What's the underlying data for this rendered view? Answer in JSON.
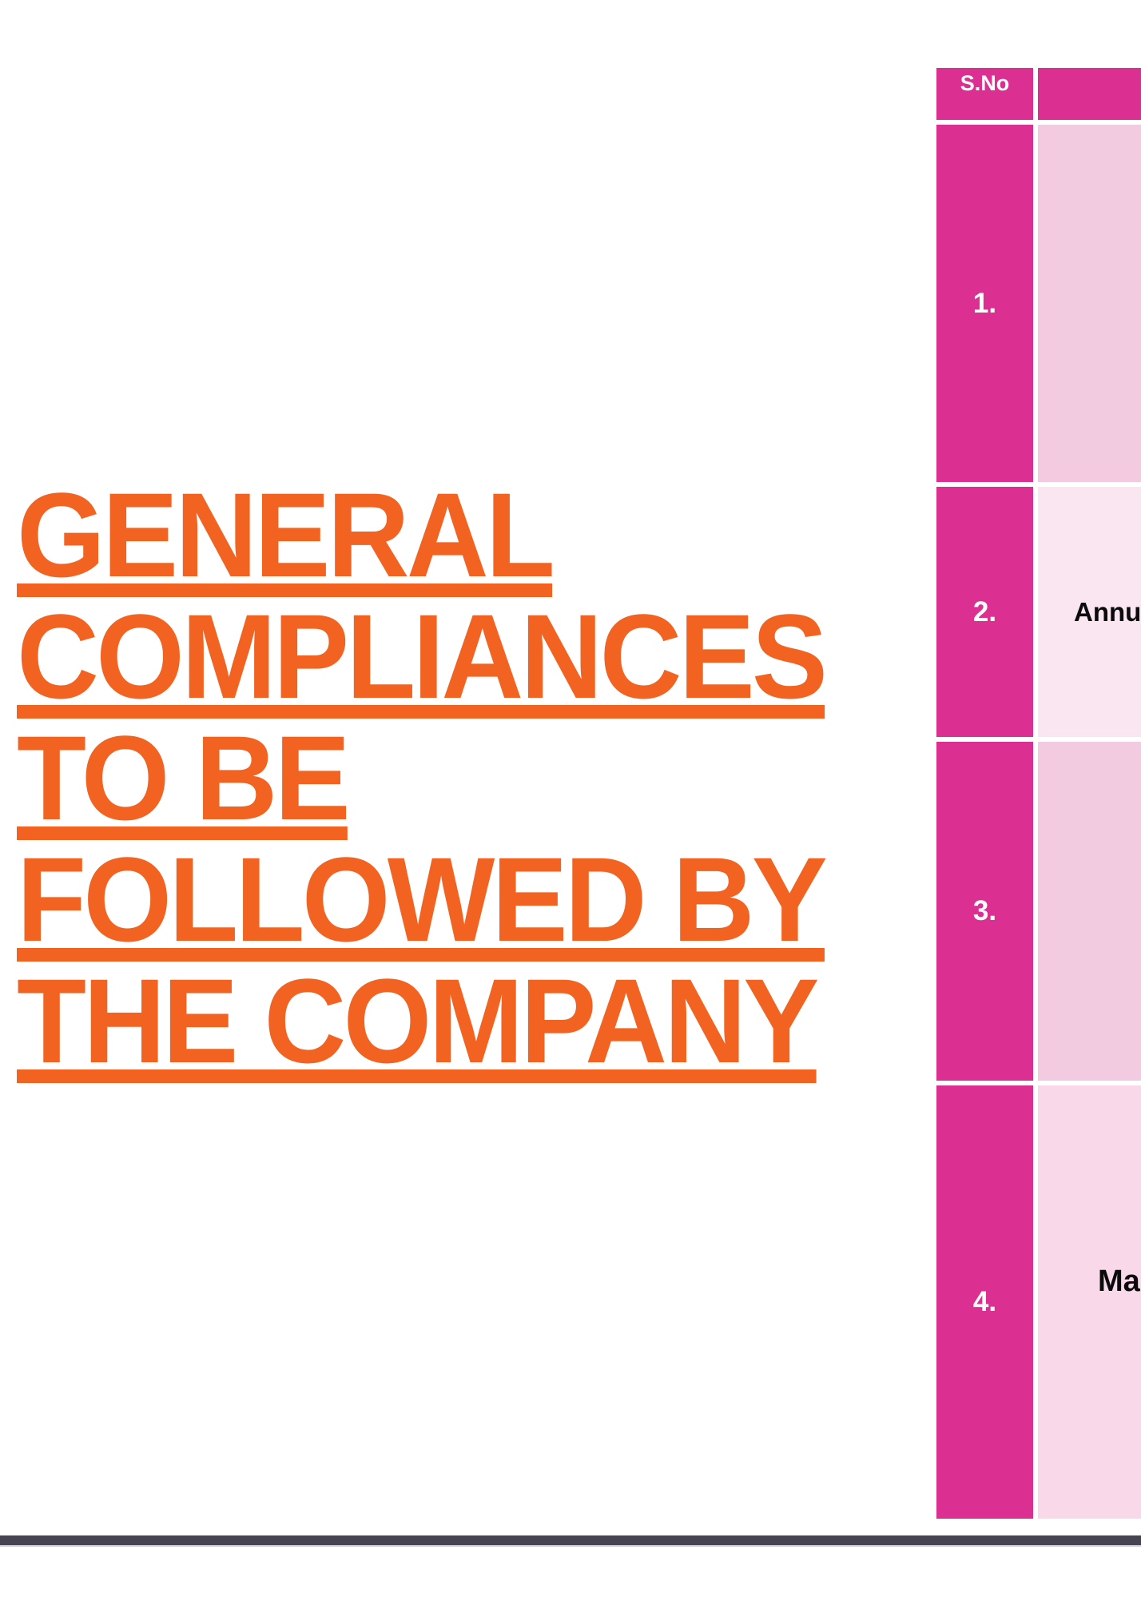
{
  "page": {
    "background_color": "#FFFFFF",
    "accent_orange": "#F26322",
    "accent_magenta": "#DB3092"
  },
  "title": {
    "full_text": "GENERAL COMPLIANCES TO BE FOLLOWED BY THE COMPANY",
    "lines": [
      "GENERAL",
      "COMPLIANCES",
      "TO BE",
      "FOLLOWED BY",
      "THE COMPANY"
    ],
    "color": "#F26322",
    "underlined": true
  },
  "table": {
    "header": {
      "sno_label": "S.No",
      "second_column_label": ""
    },
    "rows": [
      {
        "sno": "1.",
        "text": ""
      },
      {
        "sno": "2.",
        "text": "Annua"
      },
      {
        "sno": "3.",
        "text": ""
      },
      {
        "sno": "4.",
        "text": "Mai"
      }
    ],
    "colors": {
      "header_bg": "#DB3092",
      "sno_column_bg": "#DB3092",
      "row_odd_bg": "#F2CBE0",
      "row_even_bg": "#FAE6F1",
      "row_four_bg": "#F8D8E9",
      "header_text": "#FFFFFF",
      "cell_text": "#0B0B0B",
      "gridline": "#FFFFFF"
    },
    "clipped_at_right_edge": true
  },
  "footer": {
    "bar_color": "#454450",
    "bar_shadow_color": "#C9CAD2"
  }
}
